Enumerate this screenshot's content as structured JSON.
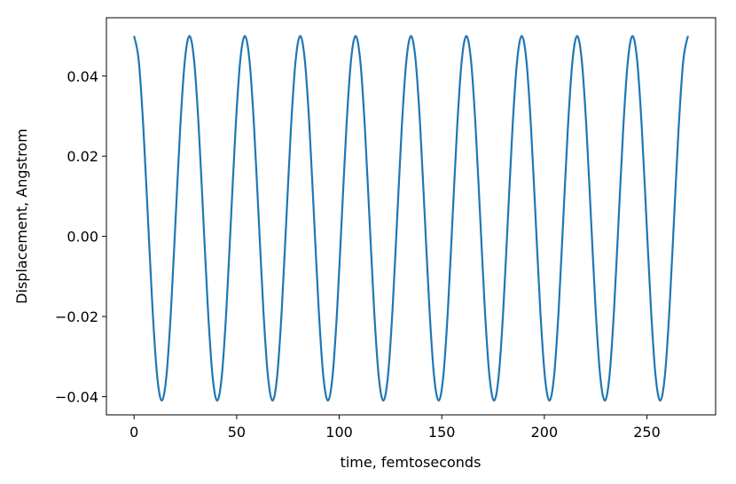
{
  "chart_data": {
    "type": "line",
    "xlabel": "time, femtoseconds",
    "ylabel": "Displacement, Angstrom",
    "color": "#1f77b4",
    "xlim": [
      -13.5,
      283.5
    ],
    "xticks": [
      0,
      50,
      100,
      150,
      200,
      250
    ],
    "ylim": [
      -0.04455,
      0.05455
    ],
    "yticks": [
      {
        "value": -0.04,
        "label": "−0.04"
      },
      {
        "value": -0.02,
        "label": "−0.02"
      },
      {
        "value": 0,
        "label": "0.00"
      },
      0.02,
      0.04
    ],
    "x": [
      0,
      2.25,
      4.5,
      6.75,
      9,
      11.25,
      13.5,
      15.75,
      18,
      20.25,
      22.5,
      24.75,
      27,
      29.25,
      31.5,
      33.75,
      36,
      38.25,
      40.5,
      42.75,
      45,
      47.25,
      49.5,
      51.75,
      54,
      56.25,
      58.5,
      60.75,
      63,
      65.25,
      67.5,
      69.75,
      72,
      74.25,
      76.5,
      78.75,
      81,
      83.25,
      85.5,
      87.75,
      90,
      92.25,
      94.5,
      96.75,
      99,
      101.25,
      103.5,
      105.75,
      108,
      110.25,
      112.5,
      114.75,
      117,
      119.25,
      121.5,
      123.75,
      126,
      128.25,
      130.5,
      132.75,
      135,
      137.25,
      139.5,
      141.75,
      144,
      146.25,
      148.5,
      150.75,
      153,
      155.25,
      157.5,
      159.75,
      162,
      164.25,
      166.5,
      168.75,
      171,
      173.25,
      175.5,
      177.75,
      180,
      182.25,
      184.5,
      186.75,
      189,
      191.25,
      193.5,
      195.75,
      198,
      200.25,
      202.5,
      204.75,
      207,
      209.25,
      211.5,
      213.75,
      216,
      218.25,
      220.5,
      222.75,
      225,
      227.25,
      229.5,
      231.75,
      234,
      236.25,
      238.5,
      240.75,
      243,
      245.25,
      247.5,
      249.75,
      252,
      254.25,
      256.5,
      258.75,
      261,
      263.25,
      265.5,
      267.75,
      270
    ],
    "values": [
      0.05,
      0.0439,
      0.02725,
      0.0045,
      -0.01825,
      -0.0349,
      -0.041,
      -0.0349,
      -0.01825,
      0.0045,
      0.02725,
      0.0439,
      0.05,
      0.0439,
      0.02725,
      0.0045,
      -0.01825,
      -0.0349,
      -0.041,
      -0.0349,
      -0.01825,
      0.0045,
      0.02725,
      0.0439,
      0.05,
      0.0439,
      0.02725,
      0.0045,
      -0.01825,
      -0.0349,
      -0.041,
      -0.0349,
      -0.01825,
      0.0045,
      0.02725,
      0.0439,
      0.05,
      0.0439,
      0.02725,
      0.0045,
      -0.01825,
      -0.0349,
      -0.041,
      -0.0349,
      -0.01825,
      0.0045,
      0.02725,
      0.0439,
      0.05,
      0.0439,
      0.02725,
      0.0045,
      -0.01825,
      -0.0349,
      -0.041,
      -0.0349,
      -0.01825,
      0.0045,
      0.02725,
      0.0439,
      0.05,
      0.0439,
      0.02725,
      0.0045,
      -0.01825,
      -0.0349,
      -0.041,
      -0.0349,
      -0.01825,
      0.0045,
      0.02725,
      0.0439,
      0.05,
      0.0439,
      0.02725,
      0.0045,
      -0.01825,
      -0.0349,
      -0.041,
      -0.0349,
      -0.01825,
      0.0045,
      0.02725,
      0.0439,
      0.05,
      0.0439,
      0.02725,
      0.0045,
      -0.01825,
      -0.0349,
      -0.041,
      -0.0349,
      -0.01825,
      0.0045,
      0.02725,
      0.0439,
      0.05,
      0.0439,
      0.02725,
      0.0045,
      -0.01825,
      -0.0349,
      -0.041,
      -0.0349,
      -0.01825,
      0.0045,
      0.02725,
      0.0439,
      0.05,
      0.0439,
      0.02725,
      0.0045,
      -0.01825,
      -0.0349,
      -0.041,
      -0.0349,
      -0.01825,
      0.0045,
      0.02725,
      0.0439,
      0.05
    ]
  }
}
